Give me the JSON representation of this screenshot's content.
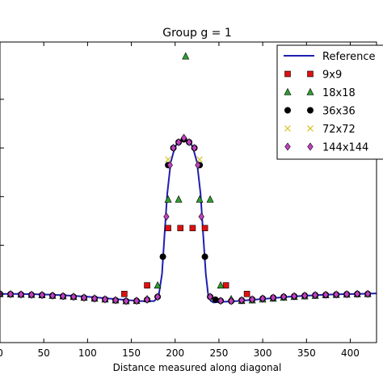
{
  "chart_data": {
    "type": "scatter",
    "title": "Group g = 1",
    "xlabel": "Distance measured along diagonal",
    "ylabel": "",
    "xlim": [
      0,
      430
    ],
    "ylim": [
      0,
      1.05
    ],
    "xticks": [
      "0",
      "50",
      "100",
      "150",
      "200",
      "250",
      "300",
      "350",
      "400"
    ],
    "xtick_values": [
      0,
      50,
      100,
      150,
      200,
      250,
      300,
      350,
      400
    ],
    "grid": false,
    "legend_position": "top-right",
    "series": [
      {
        "name": "Reference",
        "kind": "line",
        "color": "#1f1faf",
        "x": [
          0,
          20,
          40,
          60,
          80,
          100,
          120,
          140,
          160,
          176,
          181,
          185,
          188,
          191,
          195,
          200,
          205,
          210,
          215,
          220,
          225,
          229,
          232,
          235,
          238,
          241,
          244,
          250,
          270,
          290,
          310,
          330,
          350,
          370,
          390,
          410,
          430
        ],
        "y": [
          0.17,
          0.17,
          0.169,
          0.167,
          0.164,
          0.16,
          0.155,
          0.15,
          0.145,
          0.145,
          0.16,
          0.24,
          0.38,
          0.52,
          0.63,
          0.685,
          0.705,
          0.71,
          0.705,
          0.685,
          0.63,
          0.52,
          0.38,
          0.24,
          0.16,
          0.145,
          0.14,
          0.142,
          0.145,
          0.15,
          0.155,
          0.16,
          0.164,
          0.167,
          0.169,
          0.17,
          0.172
        ]
      },
      {
        "name": "9x9",
        "kind": "marker",
        "marker": "square",
        "color": "#e01010",
        "x": [
          142,
          168,
          192,
          206,
          220,
          234,
          258,
          282
        ],
        "y": [
          0.17,
          0.2,
          0.4,
          0.4,
          0.4,
          0.4,
          0.2,
          0.17
        ]
      },
      {
        "name": "18x18",
        "kind": "marker",
        "marker": "triangle",
        "color": "#2e9e2e",
        "x": [
          0,
          12,
          24,
          36,
          48,
          60,
          72,
          84,
          96,
          108,
          120,
          132,
          144,
          156,
          168,
          180,
          192,
          204,
          212,
          228,
          240,
          252,
          264,
          276,
          288,
          300,
          312,
          324,
          336,
          348,
          360,
          372,
          384,
          396,
          408,
          420
        ],
        "y": [
          0.17,
          0.169,
          0.168,
          0.167,
          0.166,
          0.164,
          0.162,
          0.16,
          0.157,
          0.154,
          0.151,
          0.148,
          0.145,
          0.146,
          0.152,
          0.2,
          0.5,
          0.5,
          1.0,
          0.5,
          0.5,
          0.2,
          0.152,
          0.146,
          0.148,
          0.151,
          0.154,
          0.157,
          0.16,
          0.162,
          0.164,
          0.166,
          0.167,
          0.168,
          0.169,
          0.17
        ]
      },
      {
        "name": "36x36",
        "kind": "marker",
        "marker": "circle",
        "color": "#000000",
        "x": [
          0,
          12,
          24,
          36,
          48,
          60,
          72,
          84,
          96,
          108,
          120,
          132,
          144,
          156,
          168,
          180,
          186,
          192,
          198,
          204,
          210,
          216,
          222,
          228,
          234,
          240,
          246,
          252,
          264,
          276,
          288,
          300,
          312,
          324,
          336,
          348,
          360,
          372,
          384,
          396,
          408,
          420
        ],
        "y": [
          0.17,
          0.169,
          0.168,
          0.167,
          0.166,
          0.164,
          0.162,
          0.16,
          0.157,
          0.154,
          0.151,
          0.148,
          0.145,
          0.146,
          0.15,
          0.16,
          0.3,
          0.62,
          0.68,
          0.7,
          0.71,
          0.7,
          0.68,
          0.62,
          0.3,
          0.16,
          0.15,
          0.146,
          0.145,
          0.148,
          0.151,
          0.154,
          0.157,
          0.16,
          0.162,
          0.164,
          0.166,
          0.167,
          0.168,
          0.169,
          0.17,
          0.17
        ]
      },
      {
        "name": "72x72",
        "kind": "marker",
        "marker": "x",
        "color": "#d4c21a",
        "x": [
          192,
          228
        ],
        "y": [
          0.64,
          0.64
        ]
      },
      {
        "name": "144x144",
        "kind": "marker",
        "marker": "diamond",
        "color": "#c040c0",
        "x": [
          0,
          12,
          24,
          36,
          48,
          60,
          72,
          84,
          96,
          108,
          120,
          132,
          144,
          156,
          168,
          180,
          190,
          194,
          198,
          204,
          210,
          216,
          222,
          226,
          230,
          240,
          252,
          264,
          276,
          288,
          300,
          312,
          324,
          336,
          348,
          360,
          372,
          384,
          396,
          408,
          420
        ],
        "y": [
          0.17,
          0.169,
          0.168,
          0.167,
          0.166,
          0.164,
          0.162,
          0.16,
          0.157,
          0.154,
          0.151,
          0.148,
          0.145,
          0.146,
          0.15,
          0.16,
          0.44,
          0.62,
          0.68,
          0.7,
          0.715,
          0.7,
          0.68,
          0.62,
          0.44,
          0.16,
          0.146,
          0.145,
          0.148,
          0.151,
          0.154,
          0.157,
          0.16,
          0.162,
          0.164,
          0.166,
          0.167,
          0.168,
          0.169,
          0.17,
          0.17
        ]
      }
    ]
  }
}
